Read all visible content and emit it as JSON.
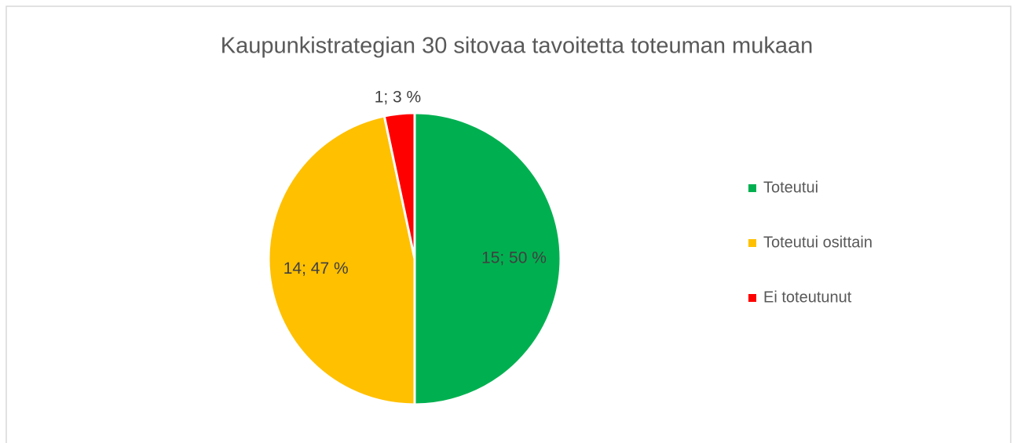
{
  "chart_data": {
    "type": "pie",
    "title": "Kaupunkistrategian 30 sitovaa tavoitetta toteuman mukaan",
    "categories": [
      "Toteutui",
      "Toteutui osittain",
      "Ei toteutunut"
    ],
    "values": [
      15,
      14,
      1
    ],
    "value_labels": [
      "15; 50 %",
      "14; 47 %",
      "1; 3 %"
    ],
    "colors": [
      "#00b050",
      "#ffc000",
      "#ff0000"
    ],
    "legend": "right"
  }
}
